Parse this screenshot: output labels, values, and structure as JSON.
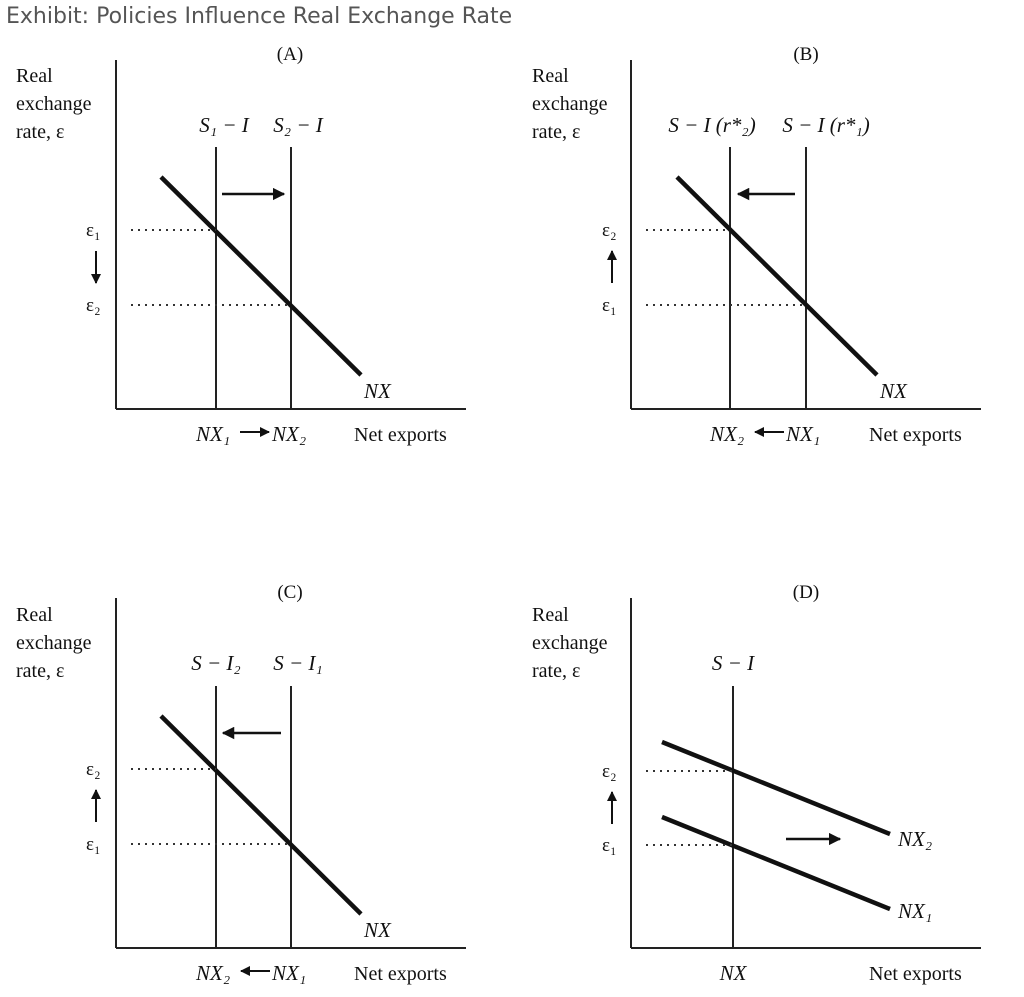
{
  "title": "Exhibit: Policies Influence Real Exchange Rate",
  "panels": [
    {
      "letter": "(A)",
      "ylabel": [
        "Real",
        "exchange",
        "rate, ε"
      ],
      "xlabel": "Net exports",
      "curve_labels": [
        "S₁ − I",
        "S₂ − I"
      ],
      "nx_label": "NX",
      "eps_upper": "ε₁",
      "eps_lower": "ε₂",
      "xtick_left": "NX₁",
      "xtick_right": "NX₂",
      "curve_arrow": "right",
      "xtick_arrow": "right",
      "eps_arrow": "down"
    },
    {
      "letter": "(B)",
      "ylabel": [
        "Real",
        "exchange",
        "rate, ε"
      ],
      "xlabel": "Net exports",
      "curve_labels": [
        "S − I (r*₂)",
        "S − I (r*₁)"
      ],
      "nx_label": "NX",
      "eps_upper": "ε₂",
      "eps_lower": "ε₁",
      "xtick_left": "NX₂",
      "xtick_right": "NX₁",
      "curve_arrow": "left",
      "xtick_arrow": "left",
      "eps_arrow": "up"
    },
    {
      "letter": "(C)",
      "ylabel": [
        "Real",
        "exchange",
        "rate, ε"
      ],
      "xlabel": "Net exports",
      "curve_labels": [
        "S − I₂",
        "S − I₁"
      ],
      "nx_label": "NX",
      "eps_upper": "ε₂",
      "eps_lower": "ε₁",
      "xtick_left": "NX₂",
      "xtick_right": "NX₁",
      "curve_arrow": "left",
      "xtick_arrow": "left",
      "eps_arrow": "up"
    },
    {
      "letter": "(D)",
      "ylabel": [
        "Real",
        "exchange",
        "rate, ε"
      ],
      "xlabel": "Net exports",
      "curve_labels": [
        "S − I"
      ],
      "nx_upper_label": "NX₂",
      "nx_lower_label": "NX₁",
      "eps_upper": "ε₂",
      "eps_lower": "ε₁",
      "xtick_center": "NX",
      "curve_arrow": "right",
      "eps_arrow": "up"
    }
  ]
}
